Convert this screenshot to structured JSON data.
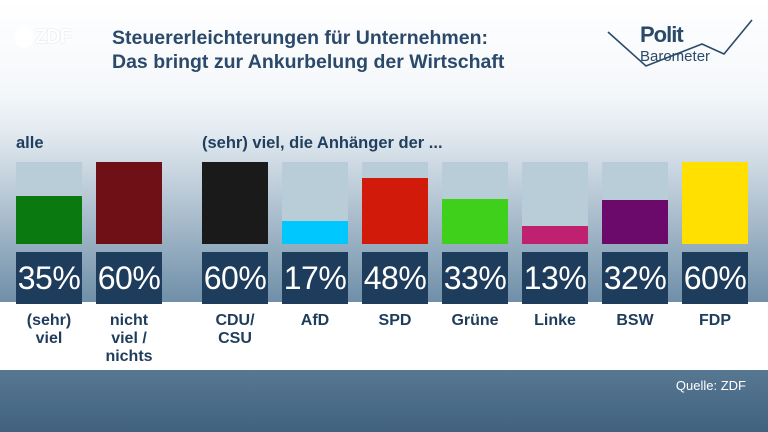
{
  "header": {
    "title_line1": "Steuererleichterungen für Unternehmen:",
    "title_line2": "Das bringt zur Ankurbelung der Wirtschaft"
  },
  "logos": {
    "zdf": "ZDF",
    "polit": "Polit",
    "barometer": "Barometer"
  },
  "section_labels": {
    "all": "alle",
    "supporters": "(sehr) viel, die Anhänger der ..."
  },
  "source": "Quelle: ZDF",
  "colors": {
    "sehr_viel": "#0a7a10",
    "nicht_viel": "#6e1015",
    "CDU": "#1a1a1a",
    "AfD": "#00c8ff",
    "SPD": "#d21a0a",
    "Gruene": "#3ed01a",
    "Linke": "#c02070",
    "BSW": "#6b0a6b",
    "FDP": "#ffe000",
    "track": "#b9cdd9",
    "value_box": "#1e3d5c"
  },
  "chart_data": {
    "type": "bar",
    "ylim": [
      0,
      60
    ],
    "groups": [
      {
        "label": "alle",
        "categories": [
          "(sehr) viel",
          "nicht viel / nichts"
        ],
        "values": [
          35,
          60
        ],
        "display": [
          "35%",
          "60%"
        ]
      },
      {
        "label": "(sehr) viel, die Anhänger der ...",
        "categories": [
          "CDU/ CSU",
          "AfD",
          "SPD",
          "Grüne",
          "Linke",
          "BSW",
          "FDP"
        ],
        "values": [
          60,
          17,
          48,
          33,
          13,
          32,
          60
        ],
        "display": [
          "60%",
          "17%",
          "48%",
          "33%",
          "13%",
          "32%",
          "60%"
        ]
      }
    ]
  },
  "bars": [
    {
      "label_l1": "(sehr)",
      "label_l2": "viel",
      "label_l3": "",
      "value": 35,
      "text": "35%",
      "color_key": "sehr_viel"
    },
    {
      "label_l1": "nicht",
      "label_l2": "viel /",
      "label_l3": "nichts",
      "value": 60,
      "text": "60%",
      "color_key": "nicht_viel"
    },
    {
      "label_l1": "CDU/",
      "label_l2": "CSU",
      "label_l3": "",
      "value": 60,
      "text": "60%",
      "color_key": "CDU"
    },
    {
      "label_l1": "AfD",
      "label_l2": "",
      "label_l3": "",
      "value": 17,
      "text": "17%",
      "color_key": "AfD"
    },
    {
      "label_l1": "SPD",
      "label_l2": "",
      "label_l3": "",
      "value": 48,
      "text": "48%",
      "color_key": "SPD"
    },
    {
      "label_l1": "Grüne",
      "label_l2": "",
      "label_l3": "",
      "value": 33,
      "text": "33%",
      "color_key": "Gruene"
    },
    {
      "label_l1": "Linke",
      "label_l2": "",
      "label_l3": "",
      "value": 13,
      "text": "13%",
      "color_key": "Linke"
    },
    {
      "label_l1": "BSW",
      "label_l2": "",
      "label_l3": "",
      "value": 32,
      "text": "32%",
      "color_key": "BSW"
    },
    {
      "label_l1": "FDP",
      "label_l2": "",
      "label_l3": "",
      "value": 60,
      "text": "60%",
      "color_key": "FDP"
    }
  ]
}
